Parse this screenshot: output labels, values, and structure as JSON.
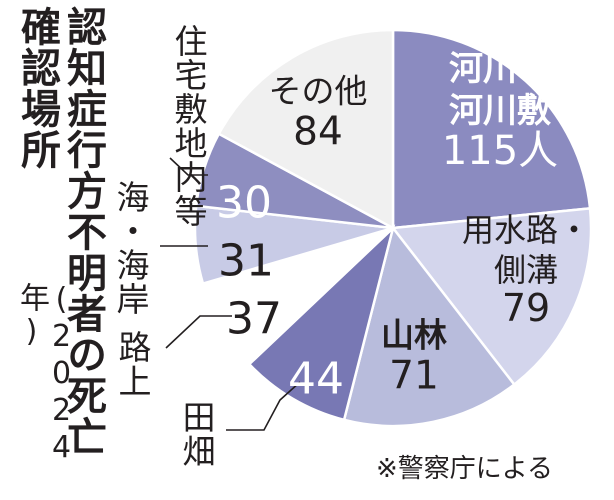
{
  "title": "認知症行方不明者の死亡確認場所",
  "subtitle": "(2024年)",
  "source": "※警察庁による",
  "chart_data": {
    "type": "pie",
    "title": "認知症行方不明者の死亡確認場所",
    "subtitle": "(2024年)",
    "slices": [
      {
        "label": "河川・河川敷",
        "value": 115,
        "value_text": "115人",
        "color": "#8b8bc0",
        "text_color": "#ffffff",
        "label_inside": true
      },
      {
        "label": "用水路・側溝",
        "value": 79,
        "value_text": "79",
        "color": "#d3d5ec",
        "text_color": "#231f20",
        "label_inside": true
      },
      {
        "label": "山林",
        "value": 71,
        "value_text": "71",
        "color": "#b8bcdc",
        "text_color": "#231f20",
        "label_inside": true
      },
      {
        "label": "田畑",
        "value": 44,
        "value_text": "44",
        "color": "#7878b4",
        "text_color": "#ffffff",
        "label_inside": false
      },
      {
        "label": "路上",
        "value": 37,
        "value_text": "37",
        "color": "#ffffff",
        "text_color": "#231f20",
        "label_inside": false
      },
      {
        "label": "海・海岸",
        "value": 31,
        "value_text": "31",
        "color": "#c8cbe6",
        "text_color": "#231f20",
        "label_inside": false
      },
      {
        "label": "住宅敷地内等",
        "value": 30,
        "value_text": "30",
        "color": "#8e8ec0",
        "text_color": "#ffffff",
        "label_inside": false
      },
      {
        "label": "その他",
        "value": 84,
        "value_text": "84",
        "color": "#f0f0f0",
        "text_color": "#231f20",
        "label_inside": true
      }
    ]
  },
  "outside_labels": {
    "residence": "住宅敷地内等",
    "sea": "海・海岸",
    "road": "路上",
    "field": "田畑"
  }
}
